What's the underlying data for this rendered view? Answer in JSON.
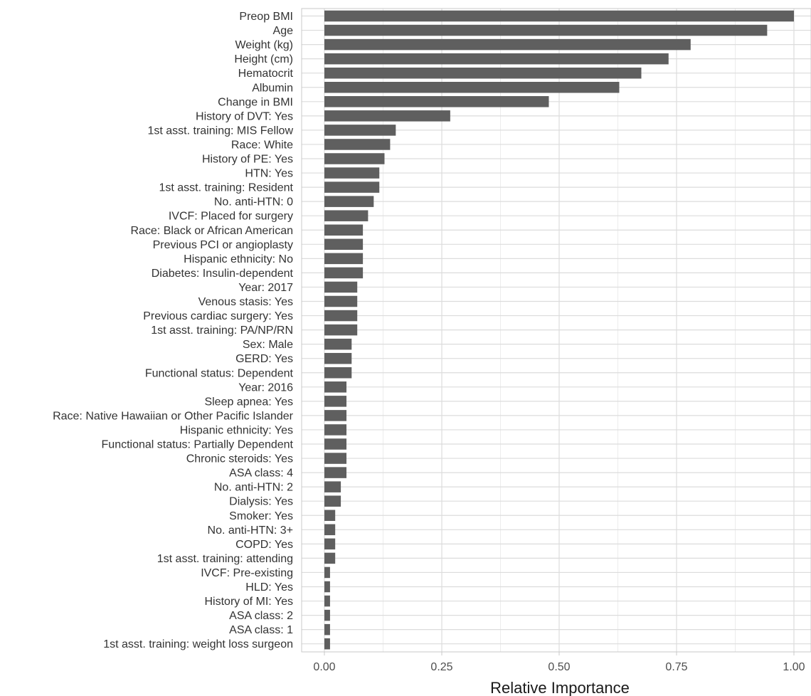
{
  "chart_data": {
    "type": "bar",
    "orientation": "horizontal",
    "xlabel": "Relative Importance",
    "ylabel": "",
    "xlim": [
      0,
      1
    ],
    "xticks": [
      "0.00",
      "0.25",
      "0.50",
      "0.75",
      "1.00"
    ],
    "xtick_values": [
      0,
      0.25,
      0.5,
      0.75,
      1.0
    ],
    "grid": true,
    "bar_color": "#5f5f5f",
    "categories": [
      "Preop BMI",
      "Age",
      "Weight (kg)",
      "Height (cm)",
      "Hematocrit",
      "Albumin",
      "Change in BMI",
      "History of DVT: Yes",
      "1st asst. training: MIS Fellow",
      "Race: White",
      "History of PE: Yes",
      "HTN: Yes",
      "1st asst. training: Resident",
      "No. anti-HTN: 0",
      "IVCF: Placed for surgery",
      "Race: Black or African American",
      "Previous PCI or angioplasty",
      "Hispanic ethnicity: No",
      "Diabetes: Insulin-dependent",
      "Year: 2017",
      "Venous stasis: Yes",
      "Previous cardiac surgery: Yes",
      "1st asst. training: PA/NP/RN",
      "Sex: Male",
      "GERD: Yes",
      "Functional status: Dependent",
      "Year: 2016",
      "Sleep apnea: Yes",
      "Race: Native Hawaiian or Other Pacific Islander",
      "Hispanic ethnicity: Yes",
      "Functional status: Partially Dependent",
      "Chronic steroids: Yes",
      "ASA class: 4",
      "No. anti-HTN: 2",
      "Dialysis: Yes",
      "Smoker: Yes",
      "No. anti-HTN: 3+",
      "COPD: Yes",
      "1st asst. training: attending",
      "IVCF: Pre-existing",
      "HLD: Yes",
      "History of MI: Yes",
      "ASA class: 2",
      "ASA class: 1",
      "1st asst. training: weight loss surgeon"
    ],
    "values": [
      1.0,
      0.943,
      0.78,
      0.733,
      0.675,
      0.628,
      0.478,
      0.268,
      0.152,
      0.14,
      0.128,
      0.117,
      0.117,
      0.105,
      0.093,
      0.082,
      0.082,
      0.082,
      0.082,
      0.07,
      0.07,
      0.07,
      0.07,
      0.058,
      0.058,
      0.058,
      0.047,
      0.047,
      0.047,
      0.047,
      0.047,
      0.047,
      0.047,
      0.035,
      0.035,
      0.023,
      0.023,
      0.023,
      0.023,
      0.012,
      0.012,
      0.012,
      0.012,
      0.012,
      0.012
    ]
  }
}
